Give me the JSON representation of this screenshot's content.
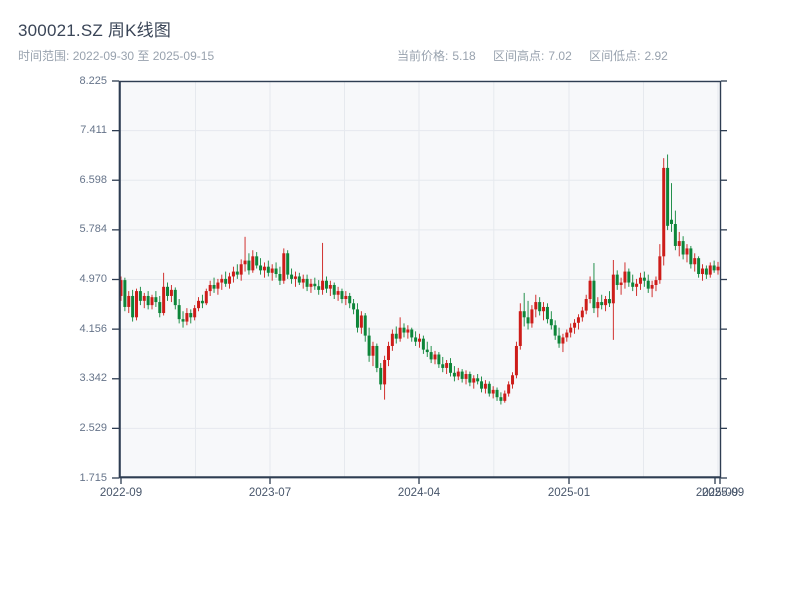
{
  "header": {
    "title": "300021.SZ 周K线图",
    "subtitle_label": "时间范围:",
    "subtitle_range": "2022-09-30 至 2025-09-15",
    "stats": [
      {
        "label": "当前价格:",
        "value": "5.18"
      },
      {
        "label": "区间高点:",
        "value": "7.02"
      },
      {
        "label": "区间低点:",
        "value": "2.92"
      }
    ]
  },
  "chart_data": {
    "type": "candlestick",
    "title": "300021.SZ 周K线图",
    "interval": "weekly",
    "date_start": "2022-09-30",
    "date_end": "2025-09-15",
    "last_close": 5.18,
    "range_high": 7.02,
    "range_low": 2.92,
    "grid": true,
    "ylim": [
      1.715,
      8.225
    ],
    "y_ticks": [
      "8.225",
      "7.411",
      "6.598",
      "5.784",
      "4.970",
      "4.156",
      "3.342",
      "2.529",
      "1.715"
    ],
    "x_ticks": [
      "2022-09",
      "2023-07",
      "2024-04",
      "2025-01",
      "2025-09"
    ],
    "x_tick_overlap_label": "2025-09",
    "up_color": "#cd1c19",
    "down_color": "#0d8539",
    "plot_bg": "#f7f8fa",
    "grid_color": "#e6e9ee",
    "spine_color": "#2e3d52",
    "ohlc": [
      [
        4.7,
        5.02,
        4.62,
        4.96
      ],
      [
        4.96,
        5.0,
        4.45,
        4.52
      ],
      [
        4.52,
        4.78,
        4.42,
        4.7
      ],
      [
        4.7,
        4.8,
        4.28,
        4.35
      ],
      [
        4.35,
        4.82,
        4.3,
        4.78
      ],
      [
        4.78,
        4.85,
        4.55,
        4.62
      ],
      [
        4.62,
        4.75,
        4.5,
        4.7
      ],
      [
        4.7,
        4.78,
        4.48,
        4.55
      ],
      [
        4.55,
        4.72,
        4.48,
        4.68
      ],
      [
        4.68,
        4.78,
        4.52,
        4.6
      ],
      [
        4.6,
        4.7,
        4.35,
        4.42
      ],
      [
        4.42,
        5.08,
        4.38,
        4.85
      ],
      [
        4.85,
        4.92,
        4.62,
        4.7
      ],
      [
        4.7,
        4.88,
        4.6,
        4.8
      ],
      [
        4.8,
        4.84,
        4.48,
        4.55
      ],
      [
        4.55,
        4.65,
        4.25,
        4.32
      ],
      [
        4.32,
        4.45,
        4.18,
        4.28
      ],
      [
        4.28,
        4.5,
        4.22,
        4.42
      ],
      [
        4.42,
        4.48,
        4.25,
        4.35
      ],
      [
        4.35,
        4.55,
        4.3,
        4.5
      ],
      [
        4.5,
        4.68,
        4.45,
        4.62
      ],
      [
        4.62,
        4.72,
        4.5,
        4.58
      ],
      [
        4.58,
        4.82,
        4.55,
        4.78
      ],
      [
        4.78,
        4.95,
        4.7,
        4.88
      ],
      [
        4.88,
        5.0,
        4.75,
        4.82
      ],
      [
        4.82,
        4.98,
        4.72,
        4.92
      ],
      [
        4.92,
        5.05,
        4.8,
        4.98
      ],
      [
        4.98,
        5.1,
        4.85,
        4.9
      ],
      [
        4.9,
        5.08,
        4.82,
        5.02
      ],
      [
        5.02,
        5.18,
        4.92,
        5.1
      ],
      [
        5.1,
        5.22,
        4.98,
        5.05
      ],
      [
        5.05,
        5.3,
        4.95,
        5.22
      ],
      [
        5.22,
        5.67,
        5.1,
        5.28
      ],
      [
        5.28,
        5.4,
        5.05,
        5.12
      ],
      [
        5.12,
        5.45,
        5.08,
        5.35
      ],
      [
        5.35,
        5.42,
        5.15,
        5.2
      ],
      [
        5.2,
        5.32,
        5.05,
        5.12
      ],
      [
        5.12,
        5.25,
        5.0,
        5.18
      ],
      [
        5.18,
        5.28,
        5.02,
        5.08
      ],
      [
        5.08,
        5.22,
        4.95,
        5.15
      ],
      [
        5.15,
        5.25,
        5.0,
        5.06
      ],
      [
        5.06,
        5.18,
        4.88,
        4.95
      ],
      [
        4.95,
        5.48,
        4.9,
        5.4
      ],
      [
        5.4,
        5.45,
        4.98,
        5.05
      ],
      [
        5.05,
        5.15,
        4.9,
        4.98
      ],
      [
        4.98,
        5.1,
        4.85,
        5.02
      ],
      [
        5.02,
        5.08,
        4.88,
        4.92
      ],
      [
        4.92,
        5.05,
        4.82,
        4.98
      ],
      [
        4.98,
        5.05,
        4.78,
        4.85
      ],
      [
        4.85,
        4.98,
        4.75,
        4.9
      ],
      [
        4.9,
        5.0,
        4.8,
        4.86
      ],
      [
        4.86,
        4.96,
        4.72,
        4.8
      ],
      [
        4.8,
        5.57,
        4.72,
        4.95
      ],
      [
        4.95,
        5.02,
        4.75,
        4.82
      ],
      [
        4.82,
        4.95,
        4.7,
        4.88
      ],
      [
        4.88,
        4.92,
        4.65,
        4.72
      ],
      [
        4.72,
        4.85,
        4.62,
        4.78
      ],
      [
        4.78,
        4.82,
        4.58,
        4.65
      ],
      [
        4.65,
        4.78,
        4.55,
        4.7
      ],
      [
        4.7,
        4.75,
        4.5,
        4.58
      ],
      [
        4.58,
        4.65,
        4.4,
        4.48
      ],
      [
        4.48,
        4.58,
        4.1,
        4.18
      ],
      [
        4.18,
        4.45,
        4.08,
        4.38
      ],
      [
        4.38,
        4.42,
        3.95,
        4.05
      ],
      [
        4.05,
        4.18,
        3.62,
        3.72
      ],
      [
        3.72,
        3.95,
        3.55,
        3.88
      ],
      [
        3.88,
        3.92,
        3.45,
        3.52
      ],
      [
        3.52,
        3.6,
        3.16,
        3.25
      ],
      [
        3.25,
        3.72,
        3.0,
        3.65
      ],
      [
        3.65,
        3.95,
        3.55,
        3.88
      ],
      [
        3.88,
        4.15,
        3.8,
        4.08
      ],
      [
        4.08,
        4.2,
        3.92,
        4.0
      ],
      [
        4.0,
        4.35,
        3.95,
        4.18
      ],
      [
        4.18,
        4.25,
        4.02,
        4.1
      ],
      [
        4.1,
        4.22,
        4.0,
        4.15
      ],
      [
        4.15,
        4.18,
        3.95,
        4.02
      ],
      [
        4.02,
        4.12,
        3.88,
        3.95
      ],
      [
        3.95,
        4.08,
        3.85,
        4.0
      ],
      [
        4.0,
        4.05,
        3.75,
        3.82
      ],
      [
        3.82,
        3.95,
        3.7,
        3.78
      ],
      [
        3.78,
        3.88,
        3.6,
        3.66
      ],
      [
        3.66,
        3.8,
        3.58,
        3.74
      ],
      [
        3.74,
        3.78,
        3.52,
        3.58
      ],
      [
        3.58,
        3.7,
        3.45,
        3.52
      ],
      [
        3.52,
        3.65,
        3.42,
        3.6
      ],
      [
        3.6,
        3.68,
        3.38,
        3.44
      ],
      [
        3.44,
        3.55,
        3.3,
        3.38
      ],
      [
        3.38,
        3.52,
        3.32,
        3.46
      ],
      [
        3.46,
        3.5,
        3.28,
        3.34
      ],
      [
        3.34,
        3.48,
        3.25,
        3.42
      ],
      [
        3.42,
        3.46,
        3.22,
        3.28
      ],
      [
        3.28,
        3.4,
        3.18,
        3.35
      ],
      [
        3.35,
        3.42,
        3.25,
        3.3
      ],
      [
        3.3,
        3.38,
        3.12,
        3.18
      ],
      [
        3.18,
        3.32,
        3.1,
        3.26
      ],
      [
        3.26,
        3.3,
        3.05,
        3.1
      ],
      [
        3.1,
        3.22,
        3.02,
        3.16
      ],
      [
        3.16,
        3.2,
        2.98,
        3.04
      ],
      [
        3.04,
        3.12,
        2.92,
        2.98
      ],
      [
        2.98,
        3.15,
        2.95,
        3.1
      ],
      [
        3.1,
        3.3,
        3.05,
        3.25
      ],
      [
        3.25,
        3.45,
        3.18,
        3.4
      ],
      [
        3.4,
        3.95,
        3.35,
        3.88
      ],
      [
        3.88,
        4.58,
        3.82,
        4.45
      ],
      [
        4.45,
        4.75,
        4.2,
        4.35
      ],
      [
        4.35,
        4.62,
        4.15,
        4.25
      ],
      [
        4.25,
        4.55,
        4.18,
        4.48
      ],
      [
        4.48,
        4.72,
        4.35,
        4.6
      ],
      [
        4.6,
        4.68,
        4.38,
        4.45
      ],
      [
        4.45,
        4.6,
        4.3,
        4.52
      ],
      [
        4.52,
        4.58,
        4.25,
        4.32
      ],
      [
        4.32,
        4.45,
        4.15,
        4.22
      ],
      [
        4.22,
        4.3,
        3.98,
        4.05
      ],
      [
        4.05,
        4.18,
        3.85,
        3.92
      ],
      [
        3.92,
        4.08,
        3.78,
        4.02
      ],
      [
        4.02,
        4.15,
        3.95,
        4.1
      ],
      [
        4.1,
        4.25,
        4.02,
        4.18
      ],
      [
        4.18,
        4.32,
        4.08,
        4.26
      ],
      [
        4.26,
        4.4,
        4.15,
        4.35
      ],
      [
        4.35,
        4.52,
        4.28,
        4.46
      ],
      [
        4.46,
        4.72,
        4.4,
        4.65
      ],
      [
        4.65,
        5.02,
        4.58,
        4.95
      ],
      [
        4.95,
        5.24,
        4.42,
        4.5
      ],
      [
        4.5,
        4.68,
        4.35,
        4.6
      ],
      [
        4.6,
        4.72,
        4.48,
        4.55
      ],
      [
        4.55,
        4.7,
        4.45,
        4.65
      ],
      [
        4.65,
        4.78,
        4.52,
        4.58
      ],
      [
        4.58,
        5.29,
        3.98,
        5.05
      ],
      [
        5.05,
        5.12,
        4.8,
        4.88
      ],
      [
        4.88,
        5.0,
        4.72,
        4.92
      ],
      [
        4.92,
        5.25,
        4.82,
        5.1
      ],
      [
        5.1,
        5.15,
        4.85,
        4.92
      ],
      [
        4.92,
        5.05,
        4.78,
        4.85
      ],
      [
        4.85,
        4.98,
        4.7,
        4.9
      ],
      [
        4.9,
        5.08,
        4.8,
        5.0
      ],
      [
        5.0,
        5.1,
        4.85,
        4.95
      ],
      [
        4.95,
        5.05,
        4.75,
        4.82
      ],
      [
        4.82,
        4.95,
        4.68,
        4.88
      ],
      [
        4.88,
        5.02,
        4.78,
        4.96
      ],
      [
        4.96,
        5.55,
        4.9,
        5.35
      ],
      [
        5.35,
        6.96,
        5.2,
        6.8
      ],
      [
        6.8,
        7.02,
        5.78,
        5.85
      ],
      [
        5.95,
        6.55,
        5.75,
        5.88
      ],
      [
        5.88,
        6.1,
        5.45,
        5.52
      ],
      [
        5.52,
        5.75,
        5.35,
        5.6
      ],
      [
        5.6,
        5.68,
        5.3,
        5.38
      ],
      [
        5.38,
        5.55,
        5.25,
        5.48
      ],
      [
        5.48,
        5.52,
        5.15,
        5.22
      ],
      [
        5.22,
        5.4,
        5.1,
        5.32
      ],
      [
        5.32,
        5.35,
        5.0,
        5.06
      ],
      [
        5.06,
        5.22,
        4.95,
        5.15
      ],
      [
        5.15,
        5.2,
        4.98,
        5.05
      ],
      [
        5.05,
        5.25,
        5.0,
        5.2
      ],
      [
        5.2,
        5.28,
        5.08,
        5.12
      ],
      [
        5.12,
        5.26,
        5.05,
        5.18
      ]
    ]
  }
}
